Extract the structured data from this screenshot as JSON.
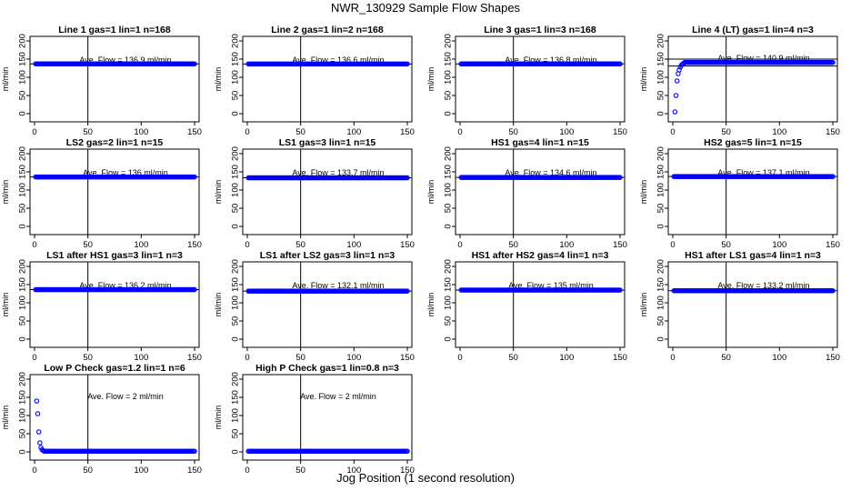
{
  "figure": {
    "title": "NWR_130929  Sample Flow Shapes",
    "xlabel": "Jog Position (1 second resolution)"
  },
  "colors": {
    "points": "#0000ff",
    "axes": "#000000",
    "background": "#ffffff"
  },
  "chart_data": [
    {
      "type": "scatter",
      "title": "Line 1 gas=1 lin=1 n=168",
      "ylabel": "ml/min",
      "annotation": "Ave. Flow = 136.9  ml/min",
      "xlim": [
        0,
        150
      ],
      "ylim": [
        0,
        200
      ],
      "xticks": [
        0,
        50,
        100,
        150
      ],
      "yticks": [
        0,
        50,
        100,
        150,
        200
      ],
      "vline_x": 50,
      "hline_y": [
        136.9
      ],
      "pattern": "flat",
      "flat_value": 136.9
    },
    {
      "type": "scatter",
      "title": "Line 2 gas=1 lin=2 n=168",
      "ylabel": "ml/min",
      "annotation": "Ave. Flow = 136.6  ml/min",
      "xlim": [
        0,
        150
      ],
      "ylim": [
        0,
        200
      ],
      "xticks": [
        0,
        50,
        100,
        150
      ],
      "yticks": [
        0,
        50,
        100,
        150,
        200
      ],
      "vline_x": 50,
      "hline_y": [
        136.6
      ],
      "pattern": "flat",
      "flat_value": 136.6
    },
    {
      "type": "scatter",
      "title": "Line 3 gas=1 lin=3 n=168",
      "ylabel": "ml/min",
      "annotation": "Ave. Flow = 136.8  ml/min",
      "xlim": [
        0,
        150
      ],
      "ylim": [
        0,
        200
      ],
      "xticks": [
        0,
        50,
        100,
        150
      ],
      "yticks": [
        0,
        50,
        100,
        150,
        200
      ],
      "vline_x": 50,
      "hline_y": [
        136.8
      ],
      "pattern": "flat",
      "flat_value": 136.8
    },
    {
      "type": "scatter",
      "title": "Line 4 (LT) gas=1 lin=4 n=3",
      "ylabel": "ml/min",
      "annotation": "Ave. Flow = 140.9  ml/min",
      "xlim": [
        0,
        150
      ],
      "ylim": [
        0,
        200
      ],
      "xticks": [
        0,
        50,
        100,
        150
      ],
      "yticks": [
        0,
        50,
        100,
        150,
        200
      ],
      "vline_x": 50,
      "hline_y": [
        131,
        150
      ],
      "pattern": "rise",
      "flat_value": 140.9,
      "lead_points": [
        [
          2,
          5
        ],
        [
          3,
          50
        ],
        [
          4,
          90
        ],
        [
          5,
          110
        ],
        [
          6,
          120
        ],
        [
          7,
          128
        ],
        [
          8,
          133
        ],
        [
          9,
          136
        ],
        [
          10,
          138
        ]
      ]
    },
    {
      "type": "scatter",
      "title": "LS2 gas=2 lin=1 n=15",
      "ylabel": "ml/min",
      "annotation": "Ave. Flow = 136  ml/min",
      "xlim": [
        0,
        150
      ],
      "ylim": [
        0,
        200
      ],
      "xticks": [
        0,
        50,
        100,
        150
      ],
      "yticks": [
        0,
        50,
        100,
        150,
        200
      ],
      "vline_x": 50,
      "hline_y": [
        136
      ],
      "pattern": "flat",
      "flat_value": 136
    },
    {
      "type": "scatter",
      "title": "LS1 gas=3 lin=1 n=15",
      "ylabel": "ml/min",
      "annotation": "Ave. Flow = 133.7  ml/min",
      "xlim": [
        0,
        150
      ],
      "ylim": [
        0,
        200
      ],
      "xticks": [
        0,
        50,
        100,
        150
      ],
      "yticks": [
        0,
        50,
        100,
        150,
        200
      ],
      "vline_x": 50,
      "hline_y": [
        133.7
      ],
      "pattern": "flat",
      "flat_value": 133.7
    },
    {
      "type": "scatter",
      "title": "HS1 gas=4 lin=1 n=15",
      "ylabel": "ml/min",
      "annotation": "Ave. Flow = 134.6  ml/min",
      "xlim": [
        0,
        150
      ],
      "ylim": [
        0,
        200
      ],
      "xticks": [
        0,
        50,
        100,
        150
      ],
      "yticks": [
        0,
        50,
        100,
        150,
        200
      ],
      "vline_x": 50,
      "hline_y": [
        134.6
      ],
      "pattern": "flat",
      "flat_value": 134.6
    },
    {
      "type": "scatter",
      "title": "HS2 gas=5 lin=1 n=15",
      "ylabel": "ml/min",
      "annotation": "Ave. Flow = 137.1  ml/min",
      "xlim": [
        0,
        150
      ],
      "ylim": [
        0,
        200
      ],
      "xticks": [
        0,
        50,
        100,
        150
      ],
      "yticks": [
        0,
        50,
        100,
        150,
        200
      ],
      "vline_x": 50,
      "hline_y": [
        137.1
      ],
      "pattern": "flat",
      "flat_value": 137.1
    },
    {
      "type": "scatter",
      "title": "LS1 after HS1 gas=3 lin=1 n=3",
      "ylabel": "ml/min",
      "annotation": "Ave. Flow = 136.2  ml/min",
      "xlim": [
        0,
        150
      ],
      "ylim": [
        0,
        200
      ],
      "xticks": [
        0,
        50,
        100,
        150
      ],
      "yticks": [
        0,
        50,
        100,
        150,
        200
      ],
      "vline_x": 50,
      "hline_y": [
        136.2
      ],
      "pattern": "flat",
      "flat_value": 136.2
    },
    {
      "type": "scatter",
      "title": "LS1 after LS2 gas=3 lin=1 n=3",
      "ylabel": "ml/min",
      "annotation": "Ave. Flow = 132.1  ml/min",
      "xlim": [
        0,
        150
      ],
      "ylim": [
        0,
        200
      ],
      "xticks": [
        0,
        50,
        100,
        150
      ],
      "yticks": [
        0,
        50,
        100,
        150,
        200
      ],
      "vline_x": 50,
      "hline_y": [
        132.1
      ],
      "pattern": "flat",
      "flat_value": 132.1
    },
    {
      "type": "scatter",
      "title": "HS1 after HS2 gas=4 lin=1 n=3",
      "ylabel": "ml/min",
      "annotation": "Ave. Flow = 135  ml/min",
      "xlim": [
        0,
        150
      ],
      "ylim": [
        0,
        200
      ],
      "xticks": [
        0,
        50,
        100,
        150
      ],
      "yticks": [
        0,
        50,
        100,
        150,
        200
      ],
      "vline_x": 50,
      "hline_y": [
        135
      ],
      "pattern": "flat",
      "flat_value": 135
    },
    {
      "type": "scatter",
      "title": "HS1 after LS1 gas=4 lin=1 n=3",
      "ylabel": "ml/min",
      "annotation": "Ave. Flow = 133.2  ml/min",
      "xlim": [
        0,
        150
      ],
      "ylim": [
        0,
        200
      ],
      "xticks": [
        0,
        50,
        100,
        150
      ],
      "yticks": [
        0,
        50,
        100,
        150,
        200
      ],
      "vline_x": 50,
      "hline_y": [
        133.2
      ],
      "pattern": "flat",
      "flat_value": 133.2
    },
    {
      "type": "scatter",
      "title": "Low P Check gas=1.2 lin=1 n=6",
      "ylabel": "ml/min",
      "annotation": "Ave. Flow =  2  ml/min",
      "xlim": [
        0,
        150
      ],
      "ylim": [
        0,
        200
      ],
      "xticks": [
        0,
        50,
        100,
        150
      ],
      "yticks": [
        0,
        50,
        100,
        150,
        200
      ],
      "vline_x": 50,
      "hline_y": [],
      "pattern": "decay",
      "flat_value": 2,
      "lead_points": [
        [
          2,
          140
        ],
        [
          3,
          105
        ],
        [
          4,
          55
        ],
        [
          5,
          25
        ],
        [
          6,
          12
        ],
        [
          7,
          6
        ],
        [
          8,
          4
        ]
      ]
    },
    {
      "type": "scatter",
      "title": "High P Check gas=1 lin=0.8 n=3",
      "ylabel": "ml/min",
      "annotation": "Ave. Flow =  2  ml/min",
      "xlim": [
        0,
        150
      ],
      "ylim": [
        0,
        200
      ],
      "xticks": [
        0,
        50,
        100,
        150
      ],
      "yticks": [
        0,
        50,
        100,
        150,
        200
      ],
      "vline_x": 50,
      "hline_y": [],
      "pattern": "flat",
      "flat_value": 2
    }
  ]
}
